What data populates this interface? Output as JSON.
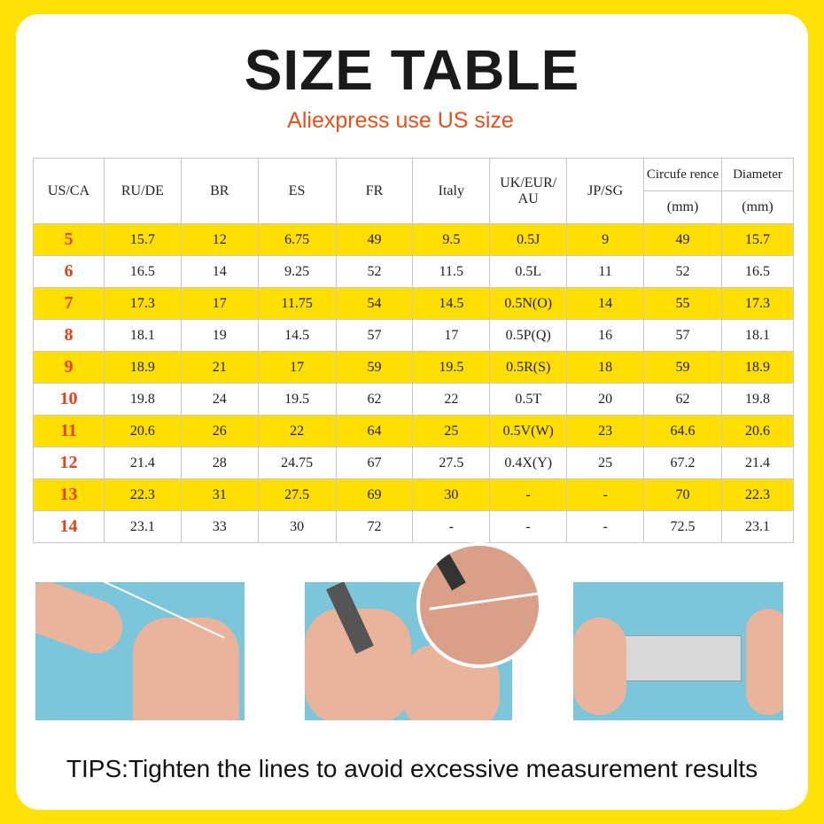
{
  "title": "SIZE TABLE",
  "subtitle": "Aliexpress use US size",
  "table": {
    "headers": [
      "US/CA",
      "RU/DE",
      "BR",
      "ES",
      "FR",
      "Italy",
      "UK/EUR/ AU",
      "JP/SG",
      "Circufe rence",
      "Diameter"
    ],
    "units": [
      "(mm)",
      "(mm)"
    ],
    "rows": [
      [
        "5",
        "15.7",
        "12",
        "6.75",
        "49",
        "9.5",
        "0.5J",
        "9",
        "49",
        "15.7"
      ],
      [
        "6",
        "16.5",
        "14",
        "9.25",
        "52",
        "11.5",
        "0.5L",
        "11",
        "52",
        "16.5"
      ],
      [
        "7",
        "17.3",
        "17",
        "11.75",
        "54",
        "14.5",
        "0.5N(O)",
        "14",
        "55",
        "17.3"
      ],
      [
        "8",
        "18.1",
        "19",
        "14.5",
        "57",
        "17",
        "0.5P(Q)",
        "16",
        "57",
        "18.1"
      ],
      [
        "9",
        "18.9",
        "21",
        "17",
        "59",
        "19.5",
        "0.5R(S)",
        "18",
        "59",
        "18.9"
      ],
      [
        "10",
        "19.8",
        "24",
        "19.5",
        "62",
        "22",
        "0.5T",
        "20",
        "62",
        "19.8"
      ],
      [
        "11",
        "20.6",
        "26",
        "22",
        "64",
        "25",
        "0.5V(W)",
        "23",
        "64.6",
        "20.6"
      ],
      [
        "12",
        "21.4",
        "28",
        "24.75",
        "67",
        "27.5",
        "0.4X(Y)",
        "25",
        "67.2",
        "21.4"
      ],
      [
        "13",
        "22.3",
        "31",
        "27.5",
        "69",
        "30",
        "-",
        "-",
        "70",
        "22.3"
      ],
      [
        "14",
        "23.1",
        "33",
        "30",
        "72",
        "-",
        "-",
        "-",
        "72.5",
        "23.1"
      ]
    ]
  },
  "tips": "TIPS:Tighten the lines to avoid excessive measurement results",
  "colors": {
    "background": "#FFE10A",
    "row_highlight": "#FFDE00",
    "accent": "#E8501A",
    "us_size": "#E2431C"
  }
}
